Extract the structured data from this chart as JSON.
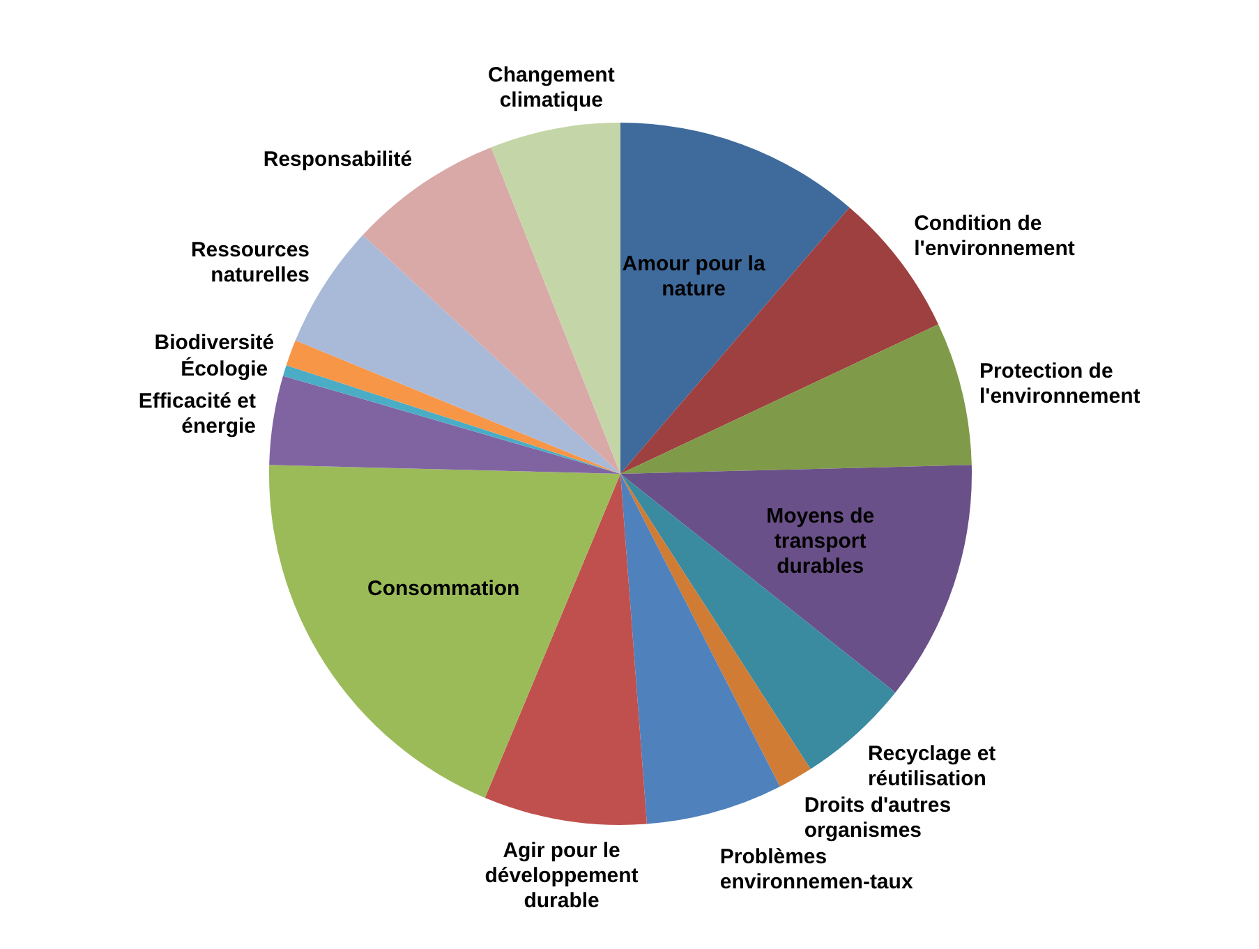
{
  "chart_data": {
    "type": "pie",
    "categories": [
      "Amour pour la nature",
      "Condition de l'environnement",
      "Protection de l'environnement",
      "Moyens de transport durables",
      "Recyclage et réutilisation",
      "Droits d'autres organismes",
      "Problèmes environnemen-taux",
      "Agir pour le développement durable",
      "Consommation",
      "Efficacité et énergie",
      "Écologie",
      "Biodiversité",
      "Ressources naturelles",
      "Responsabilité",
      "Changement climatique"
    ],
    "values": [
      11.3,
      6.7,
      6.6,
      11.1,
      5.2,
      1.6,
      6.3,
      7.5,
      19.1,
      4.1,
      0.5,
      1.2,
      5.7,
      7.1,
      6.0
    ],
    "colors": [
      "#3f6a9c",
      "#9e4040",
      "#7f9a48",
      "#6a5088",
      "#3a8aa0",
      "#d07c35",
      "#4f81bd",
      "#c0504d",
      "#9bbb59",
      "#8064a2",
      "#4bacc6",
      "#f79646",
      "#a9b9d8",
      "#d9a9a8",
      "#c4d6a8"
    ],
    "legend": false
  }
}
